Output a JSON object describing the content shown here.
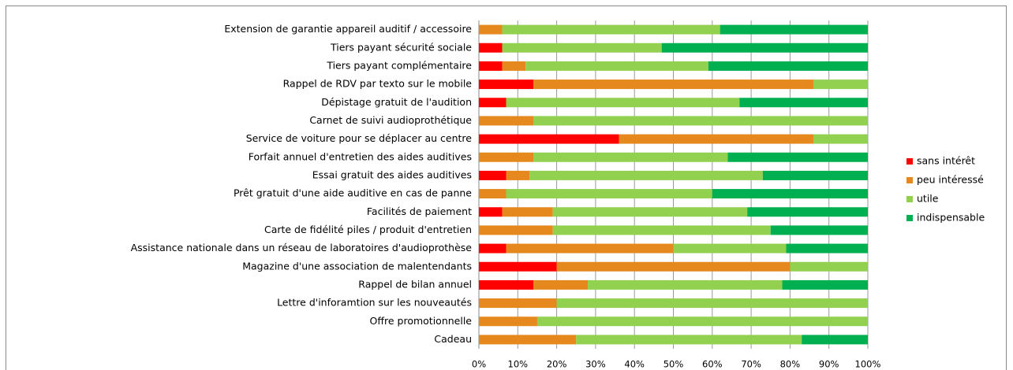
{
  "chart_data": {
    "type": "stacked_barh",
    "categories": [
      "Extension de garantie appareil auditif / accessoire",
      "Tiers payant sécurité sociale",
      "Tiers payant complémentaire",
      "Rappel de RDV par texto sur le mobile",
      "Dépistage gratuit de l'audition",
      "Carnet de suivi audioprothétique",
      "Service de voiture pour se déplacer au centre",
      "Forfait annuel d'entretien des aides auditives",
      "Essai gratuit des aides auditives",
      "Prêt gratuit d'une aide auditive en cas de panne",
      "Facilités de paiement",
      "Carte de fidélité piles / produit d'entretien",
      "Assistance nationale dans un réseau de laboratoires d'audioprothèse",
      "Magazine d'une association de malentendants",
      "Rappel de bilan annuel",
      "Lettre d'inforamtion sur les nouveautés",
      "Offre promotionnelle",
      "Cadeau"
    ],
    "series": [
      {
        "name": "sans intérêt",
        "color": "#ff0000",
        "values": [
          0,
          6,
          6,
          14,
          7,
          0,
          36,
          0,
          7,
          0,
          6,
          0,
          7,
          20,
          14,
          0,
          0,
          0
        ]
      },
      {
        "name": "peu intéressé",
        "color": "#e5891e",
        "values": [
          6,
          0,
          6,
          72,
          0,
          14,
          50,
          14,
          6,
          7,
          13,
          19,
          43,
          60,
          14,
          20,
          15,
          25
        ]
      },
      {
        "name": "utile",
        "color": "#92d050",
        "values": [
          56,
          41,
          47,
          14,
          60,
          86,
          14,
          50,
          60,
          53,
          50,
          56,
          29,
          20,
          50,
          80,
          85,
          58
        ]
      },
      {
        "name": "indispensable",
        "color": "#00b050",
        "values": [
          38,
          53,
          41,
          0,
          33,
          0,
          0,
          36,
          27,
          40,
          31,
          25,
          21,
          0,
          22,
          0,
          0,
          17
        ]
      }
    ],
    "xlim": [
      0,
      100
    ],
    "xticks": [
      {
        "value": 0,
        "label": "0%"
      },
      {
        "value": 10,
        "label": "10%"
      },
      {
        "value": 20,
        "label": "20%"
      },
      {
        "value": 30,
        "label": "30%"
      },
      {
        "value": 40,
        "label": "40%"
      },
      {
        "value": 50,
        "label": "50%"
      },
      {
        "value": 60,
        "label": "60%"
      },
      {
        "value": 70,
        "label": "70%"
      },
      {
        "value": 80,
        "label": "80%"
      },
      {
        "value": 90,
        "label": "90%"
      },
      {
        "value": 100,
        "label": "100%"
      }
    ],
    "grid": true,
    "legend": "right"
  }
}
